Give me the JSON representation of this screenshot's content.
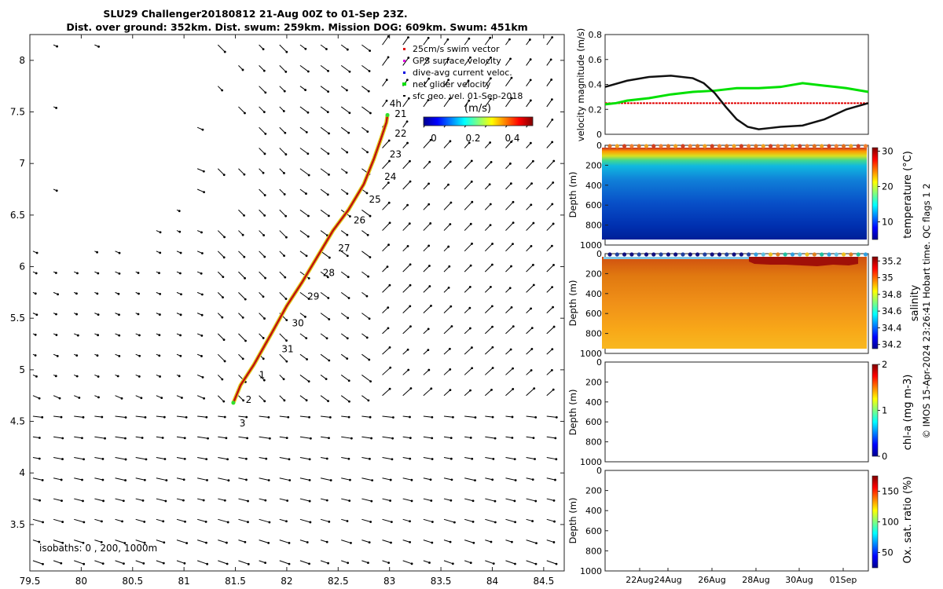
{
  "header": {
    "title_line1": "SLU29 Challenger20180812 21-Aug 00Z to 01-Sep 23Z.",
    "title_line2": "Dist. over ground: 352km. Dist. swum: 259km. Mission DOG: 609km. Swum: 451km"
  },
  "credit": "© IMOS 15-Apr-2024 23:26:41 Hobart time. QC flags 1  2",
  "colors": {
    "swim": "#e00000",
    "gps": "#e000e0",
    "dive": "#0000e0",
    "net": "#00e000",
    "track": "#c01010",
    "speed_line": "#111111",
    "arrows": "#000000"
  },
  "chart_data": [
    {
      "type": "scatter",
      "name": "map",
      "xlim": [
        79.5,
        84.7
      ],
      "ylim": [
        3.05,
        8.25
      ],
      "xticks": [
        "79.5",
        "80",
        "80.5",
        "81",
        "81.5",
        "82",
        "82.5",
        "83",
        "83.5",
        "84",
        "84.5"
      ],
      "yticks": [
        "3.5",
        "4",
        "4.5",
        "5",
        "5.5",
        "6",
        "6.5",
        "7",
        "7.5",
        "8"
      ],
      "legend": [
        {
          "label": "25cm/s swim vector",
          "color": "#e00000"
        },
        {
          "label": "GPS surface velocity",
          "color": "#e000e0"
        },
        {
          "label": "dive-avg current veloc.",
          "color": "#0000e0"
        },
        {
          "label": "net glider velocity",
          "color": "#00e000"
        },
        {
          "label": "sfc geo. vel. 01-Sep-2018",
          "color": "#000000"
        }
      ],
      "colorbar": {
        "title": "(m/s)",
        "ticks": [
          "0",
          "0.2",
          "0.4"
        ],
        "range": [
          0,
          0.5
        ]
      },
      "track": {
        "lon": [
          81.48,
          81.55,
          81.68,
          81.85,
          82.0,
          82.15,
          82.3,
          82.45,
          82.6,
          82.75,
          82.85,
          82.92,
          82.97,
          82.98
        ],
        "lat": [
          4.68,
          4.85,
          5.05,
          5.35,
          5.62,
          5.85,
          6.1,
          6.35,
          6.55,
          6.8,
          7.05,
          7.25,
          7.4,
          7.47
        ]
      },
      "day_labels": [
        {
          "label": "4h",
          "lon": 83.0,
          "lat": 7.55
        },
        {
          "label": "21",
          "lon": 83.05,
          "lat": 7.45
        },
        {
          "label": "22",
          "lon": 83.05,
          "lat": 7.26
        },
        {
          "label": "23",
          "lon": 83.0,
          "lat": 7.06
        },
        {
          "label": "24",
          "lon": 82.95,
          "lat": 6.84
        },
        {
          "label": "25",
          "lon": 82.8,
          "lat": 6.62
        },
        {
          "label": "26",
          "lon": 82.65,
          "lat": 6.42
        },
        {
          "label": "27",
          "lon": 82.5,
          "lat": 6.15
        },
        {
          "label": "28",
          "lon": 82.35,
          "lat": 5.91
        },
        {
          "label": "29",
          "lon": 82.2,
          "lat": 5.68
        },
        {
          "label": "30",
          "lon": 82.05,
          "lat": 5.42
        },
        {
          "label": "31",
          "lon": 81.95,
          "lat": 5.17
        },
        {
          "label": "1",
          "lon": 81.73,
          "lat": 4.92
        },
        {
          "label": "2",
          "lon": 81.6,
          "lat": 4.68
        },
        {
          "label": "3",
          "lon": 81.54,
          "lat": 4.45
        }
      ],
      "annotation": "isobaths: 0 , 200, 1000m"
    },
    {
      "type": "line",
      "name": "velocity",
      "ylabel": "velocity magnitude (m/s)",
      "ylim": [
        0,
        0.8
      ],
      "yticks": [
        "0",
        "0.2",
        "0.4",
        "0.6",
        "0.8"
      ],
      "xlim": [
        0,
        12
      ],
      "series": [
        {
          "name": "surface speed",
          "color": "#111111",
          "x": [
            0,
            1,
            2,
            3,
            4,
            4.5,
            5,
            5.5,
            6,
            6.5,
            7,
            7.5,
            8,
            9,
            10,
            11,
            12
          ],
          "values": [
            0.38,
            0.43,
            0.46,
            0.47,
            0.45,
            0.41,
            0.33,
            0.22,
            0.12,
            0.06,
            0.04,
            0.05,
            0.06,
            0.07,
            0.12,
            0.2,
            0.25
          ]
        },
        {
          "name": "net glider velocity",
          "color": "#00e000",
          "x": [
            0,
            0.5,
            1,
            2,
            3,
            4,
            5,
            6,
            7,
            8,
            9,
            10,
            10.5,
            11,
            12
          ],
          "values": [
            0.24,
            0.25,
            0.27,
            0.29,
            0.32,
            0.34,
            0.35,
            0.37,
            0.37,
            0.38,
            0.41,
            0.39,
            0.38,
            0.37,
            0.34
          ]
        },
        {
          "name": "swim vector",
          "color": "#e00000",
          "x": [
            0,
            12
          ],
          "values": [
            0.25,
            0.25
          ]
        }
      ]
    },
    {
      "type": "heatmap",
      "name": "temperature",
      "ylabel": "Depth (m)",
      "clabel": "temperature (°C)",
      "yticks": [
        "0",
        "200",
        "400",
        "600",
        "800",
        "1000"
      ],
      "cticks": [
        "10",
        "20",
        "30"
      ],
      "crange": [
        5,
        31
      ]
    },
    {
      "type": "heatmap",
      "name": "salinity",
      "ylabel": "Depth (m)",
      "clabel": "salinity",
      "yticks": [
        "0",
        "200",
        "400",
        "600",
        "800",
        "1000"
      ],
      "cticks": [
        "34.2",
        "34.4",
        "34.6",
        "34.8",
        "35",
        "35.2"
      ],
      "crange": [
        34.15,
        35.25
      ]
    },
    {
      "type": "heatmap",
      "name": "chl-a",
      "ylabel": "Depth (m)",
      "clabel": "chl-a (mg m-3)",
      "yticks": [
        "0",
        "200",
        "400",
        "600",
        "800",
        "1000"
      ],
      "cticks": [
        "0",
        "1",
        "2"
      ],
      "crange": [
        0,
        2
      ]
    },
    {
      "type": "heatmap",
      "name": "oxygen",
      "ylabel": "Depth (m)",
      "clabel": "Ox. sat. ratio (%)",
      "yticks": [
        "0",
        "200",
        "400",
        "600",
        "800",
        "1000"
      ],
      "cticks": [
        "50",
        "100",
        "150"
      ],
      "crange": [
        25,
        175
      ],
      "xticks": [
        "22Aug",
        "24Aug",
        "26Aug",
        "28Aug",
        "30Aug",
        "01Sep"
      ]
    }
  ]
}
